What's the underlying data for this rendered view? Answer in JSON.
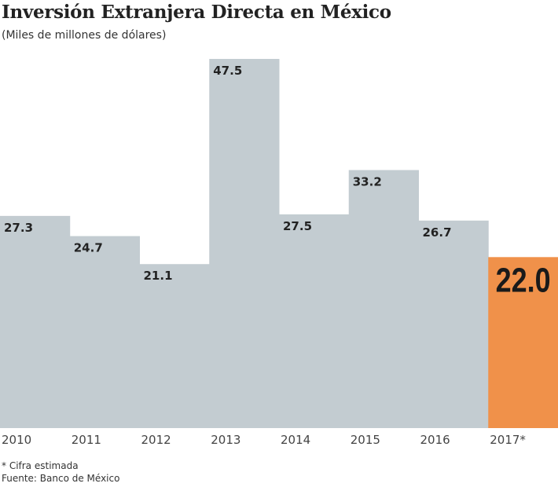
{
  "chart_data": {
    "type": "bar",
    "title": "Inversión Extranjera Directa en México",
    "subtitle": "(Miles de millones de dólares)",
    "categories": [
      "2010",
      "2011",
      "2012",
      "2013",
      "2014",
      "2015",
      "2016",
      "2017*"
    ],
    "values": [
      27.3,
      24.7,
      21.1,
      47.5,
      27.5,
      33.2,
      26.7,
      22.0
    ],
    "data_labels": [
      "27.3",
      "24.7",
      "21.1",
      "47.5",
      "27.5",
      "33.2",
      "26.7",
      "22.0"
    ],
    "highlight_index": 7,
    "colors": {
      "bar": "#c3ccd1",
      "highlight": "#f0914a"
    },
    "ylim": [
      0,
      47.5
    ],
    "grid": false
  },
  "notes": [
    "* Cifra estimada",
    "Fuente: Banco de México"
  ]
}
